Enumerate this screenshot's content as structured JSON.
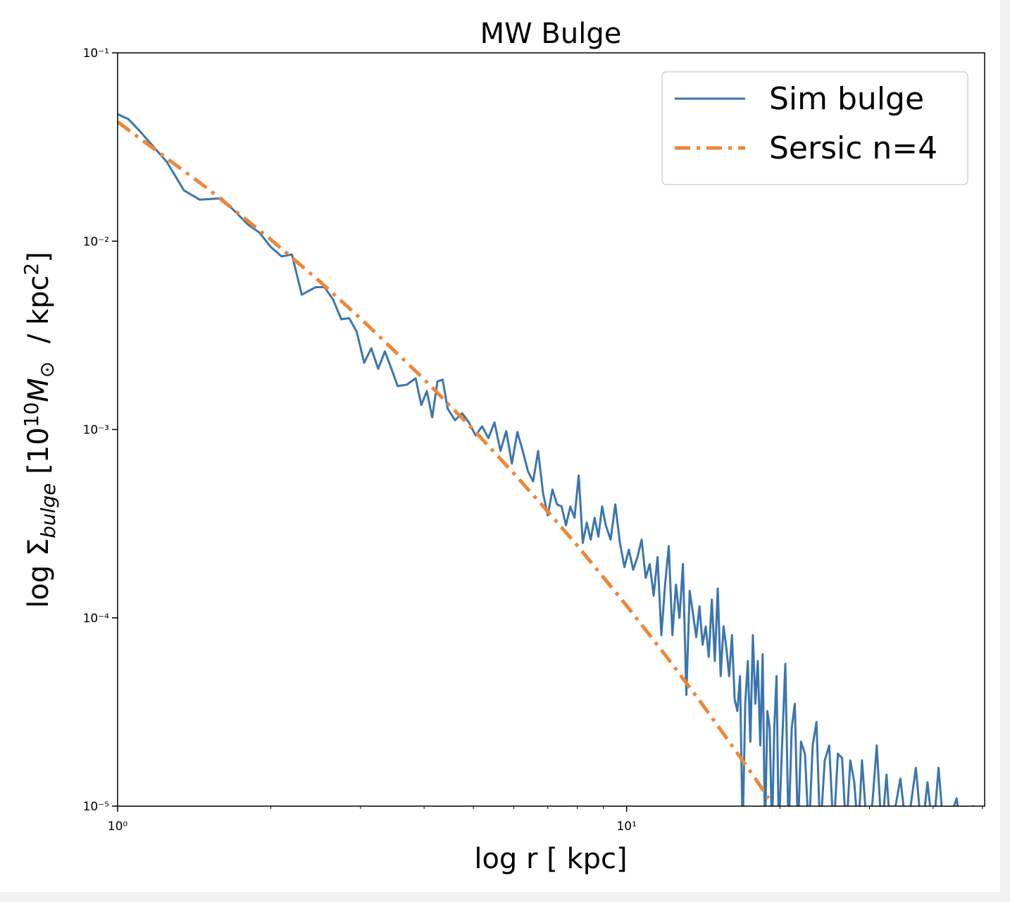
{
  "chart_data": {
    "type": "line",
    "title": "MW Bulge",
    "x_label": "log r [ kpc]",
    "y_label": [
      "log Σ",
      "bulge",
      " [10",
      "10",
      "M",
      "⊙",
      "  / kpc",
      "2",
      "]"
    ],
    "xscale": "log",
    "yscale": "log",
    "xlim": [
      1,
      50.5
    ],
    "ylim": [
      1e-05,
      0.1
    ],
    "xticks": [
      {
        "value": 1,
        "label": "10⁰"
      },
      {
        "value": 10,
        "label": "10¹"
      }
    ],
    "xminor_ticks": [
      2,
      3,
      4,
      5,
      6,
      7,
      8,
      9,
      20,
      30,
      40,
      50
    ],
    "yticks": [
      {
        "value": 1e-05,
        "label": "10⁻⁵"
      },
      {
        "value": 0.0001,
        "label": "10⁻⁴"
      },
      {
        "value": 0.001,
        "label": "10⁻³"
      },
      {
        "value": 0.01,
        "label": "10⁻²"
      },
      {
        "value": 0.1,
        "label": "10⁻¹"
      }
    ],
    "legend": "upper right",
    "series": [
      {
        "name": "Sim bulge",
        "color": "#3b75af",
        "style": "solid",
        "x": [
          1.0,
          1.05,
          1.1,
          1.25,
          1.35,
          1.45,
          1.6,
          1.7,
          1.8,
          1.9,
          2.0,
          2.1,
          2.2,
          2.3,
          2.45,
          2.55,
          2.65,
          2.75,
          2.85,
          2.95,
          3.05,
          3.15,
          3.25,
          3.35,
          3.45,
          3.55,
          3.7,
          3.85,
          3.95,
          4.05,
          4.15,
          4.25,
          4.35,
          4.45,
          4.6,
          4.75,
          4.9,
          5.05,
          5.2,
          5.35,
          5.5,
          5.65,
          5.8,
          5.95,
          6.1,
          6.25,
          6.4,
          6.55,
          6.7,
          6.85,
          7.0,
          7.15,
          7.3,
          7.45,
          7.6,
          7.75,
          7.9,
          8.05,
          8.2,
          8.35,
          8.5,
          8.65,
          8.8,
          8.95,
          9.1,
          9.3,
          9.5,
          9.7,
          9.9,
          10.1,
          10.3,
          10.5,
          10.7,
          10.9,
          11.1,
          11.3,
          11.5,
          11.7,
          11.9,
          12.1,
          12.3,
          12.5,
          12.7,
          12.9,
          13.1,
          13.3,
          13.5,
          13.7,
          13.9,
          14.1,
          14.3,
          14.5,
          14.7,
          14.9,
          15.1,
          15.3,
          15.5,
          15.7,
          15.9,
          16.1,
          16.3,
          16.5,
          16.7,
          16.9,
          17.1,
          17.3,
          17.5,
          17.7,
          17.9,
          18.1,
          18.3,
          18.5,
          18.7,
          18.9,
          19.1,
          19.3,
          19.5,
          19.7,
          19.9,
          20.2,
          20.5,
          20.8,
          21.1,
          21.4,
          21.7,
          22.0,
          22.4,
          22.8,
          23.2,
          23.6,
          24.0,
          24.5,
          25.0,
          25.5,
          26.0,
          26.5,
          27.0,
          27.5,
          28.0,
          28.5,
          29.0,
          29.7,
          30.4,
          31.0,
          31.7,
          32.4,
          33.0,
          34.5,
          35.5,
          37.0,
          38.0,
          39.0,
          40.0,
          41.0,
          42.0,
          44.5,
          45.5,
          48.0,
          48.8
        ],
        "values": [
          0.0472,
          0.0445,
          0.039,
          0.0263,
          0.0186,
          0.0166,
          0.0169,
          0.0144,
          0.0123,
          0.0111,
          0.0093,
          0.0083,
          0.0085,
          0.0052,
          0.0057,
          0.0057,
          0.0049,
          0.00385,
          0.0039,
          0.0033,
          0.00226,
          0.0027,
          0.0021,
          0.0026,
          0.0021,
          0.0017,
          0.00173,
          0.00187,
          0.00135,
          0.0016,
          0.00116,
          0.0018,
          0.00184,
          0.00129,
          0.00112,
          0.00122,
          0.00109,
          0.00093,
          0.00104,
          0.0009,
          0.00109,
          0.00077,
          0.00098,
          0.00066,
          0.00097,
          0.00077,
          0.0006,
          0.00053,
          0.00077,
          0.00046,
          0.00035,
          0.00048,
          0.0004,
          0.00039,
          0.00031,
          0.00039,
          0.00034,
          0.00057,
          0.00025,
          0.00032,
          0.00026,
          0.00034,
          0.00027,
          0.00039,
          0.00031,
          0.00026,
          0.0004,
          0.00025,
          0.000186,
          0.00023,
          0.00018,
          0.00021,
          0.00026,
          0.000163,
          0.000193,
          0.000131,
          0.00021,
          8.1e-05,
          0.00015,
          0.00024,
          8.1e-05,
          0.00015,
          0.0001,
          0.000193,
          3.9e-05,
          0.000139,
          0.000105,
          7.9e-05,
          0.000115,
          7.2e-05,
          9e-05,
          6.2e-05,
          0.000125,
          5.9e-05,
          0.000143,
          4.9e-05,
          9e-05,
          6.9e-05,
          4.9e-05,
          8.1e-05,
          3.7e-05,
          3.2e-05,
          4.9e-05,
          0,
          3.5e-05,
          5.9e-05,
          2.2e-05,
          8.1e-05,
          3.5e-05,
          5.9e-05,
          2.1e-05,
          6.4e-05,
          0,
          3.2e-05,
          2.6e-05,
          0,
          2.6e-05,
          4.9e-05,
          0,
          2.1e-05,
          5.7e-05,
          0,
          2.6e-05,
          3.5e-05,
          0,
          2.2e-05,
          1.9e-05,
          0,
          2.1e-05,
          2.8e-05,
          0,
          1.75e-05,
          2.1e-05,
          0,
          1.9e-05,
          1.8e-05,
          0,
          1.75e-05,
          1.34e-05,
          0,
          1.75e-05,
          0,
          1.05e-05,
          2.1e-05,
          0,
          1.47e-05,
          0,
          1.4e-05,
          0,
          1.6e-05,
          0,
          1.34e-05,
          0,
          1.6e-05,
          0,
          1.1e-05,
          0,
          1e-05,
          0
        ]
      },
      {
        "name": "Sersic n=4",
        "color": "#ef8636",
        "style": "dashdot",
        "x": [
          1,
          1.5,
          2,
          2.5,
          3,
          4,
          5,
          6,
          7,
          8,
          10,
          12,
          14,
          16,
          18,
          19
        ],
        "values": [
          0.043,
          0.0191,
          0.0102,
          0.00608,
          0.00389,
          0.00185,
          0.000998,
          0.000586,
          0.000367,
          0.000242,
          0.000116,
          6.18e-05,
          3.55e-05,
          2.15e-05,
          1.37e-05,
          1.1e-05
        ]
      }
    ]
  }
}
